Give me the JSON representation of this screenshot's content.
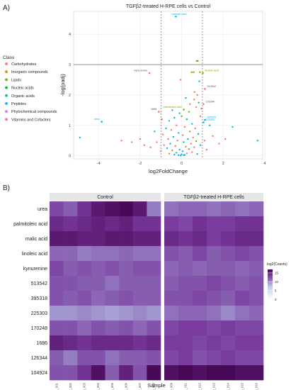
{
  "panel_labels": {
    "a": "A)",
    "b": "B)"
  },
  "legend_class": {
    "title": "Class",
    "items": [
      {
        "label": "Carbohydrates",
        "color": "#f8766d"
      },
      {
        "label": "Inorganic compounds",
        "color": "#d39200"
      },
      {
        "label": "Lipids",
        "color": "#7cae00"
      },
      {
        "label": "Nucleic acids",
        "color": "#00ba38"
      },
      {
        "label": "Organic acids",
        "color": "#00c19f"
      },
      {
        "label": "Peptides",
        "color": "#00b9e3"
      },
      {
        "label": "Phytochemical compounds",
        "color": "#c77cff"
      },
      {
        "label": "Vitamins and Cofactors",
        "color": "#ff61c3"
      }
    ]
  },
  "chart_data": [
    {
      "type": "scatter",
      "title": "TGFβ2-treated H-RPE cells vs Control",
      "xlabel": "log2FoldChange",
      "ylabel": "-log(padj)",
      "xlim": [
        -5.2,
        3.9
      ],
      "ylim": [
        -0.1,
        4.75
      ],
      "xticks": [
        -4,
        -2,
        0,
        2,
        4
      ],
      "yticks": [
        0,
        1,
        2,
        3,
        4
      ],
      "vlines": [
        -1,
        1
      ],
      "hline": 3,
      "grid": true,
      "legend": "left",
      "labeled_points": [
        {
          "label": "malonic acid",
          "x": -0.28,
          "y": 4.58,
          "class": "Peptides"
        },
        {
          "label": "kynurenine",
          "x": -1.55,
          "y": 2.72,
          "class": "Carbohydrates"
        },
        {
          "label": "linoleic acid",
          "x": 1.02,
          "y": 2.72,
          "class": "Lipids"
        },
        {
          "label": "513542",
          "x": 1.12,
          "y": 2.2,
          "class": "Carbohydrates"
        },
        {
          "label": "126344",
          "x": 1.05,
          "y": 1.7,
          "class": "Carbohydrates"
        },
        {
          "label": "palmitoleic acid",
          "x": 0.1,
          "y": 1.52,
          "class": "Lipids"
        },
        {
          "label": "1686",
          "x": -1.1,
          "y": 1.45,
          "class": "Carbohydrates"
        },
        {
          "label": "395318",
          "x": 1.12,
          "y": 1.18,
          "class": "Peptides"
        },
        {
          "label": "225303",
          "x": 1.05,
          "y": 1.1,
          "class": "Peptides"
        },
        {
          "label": "urea",
          "x": -3.85,
          "y": 1.12,
          "class": "Peptides"
        }
      ],
      "points": [
        {
          "x": 0.72,
          "y": 3.12,
          "class": "Lipids"
        },
        {
          "x": 0.78,
          "y": 3.12,
          "class": "Lipids"
        },
        {
          "x": 0.48,
          "y": 2.75,
          "class": "Lipids"
        },
        {
          "x": 0.58,
          "y": 2.75,
          "class": "Lipids"
        },
        {
          "x": 0.88,
          "y": 2.75,
          "class": "Lipids"
        },
        {
          "x": -0.05,
          "y": 2.5,
          "class": "Carbohydrates"
        },
        {
          "x": 0.85,
          "y": 2.45,
          "class": "Peptides"
        },
        {
          "x": 0.62,
          "y": 2.1,
          "class": "Carbohydrates"
        },
        {
          "x": 0.75,
          "y": 2.0,
          "class": "Carbohydrates"
        },
        {
          "x": 0.6,
          "y": 1.85,
          "class": "Carbohydrates"
        },
        {
          "x": 0.82,
          "y": 1.75,
          "class": "Organic acids"
        },
        {
          "x": 0.7,
          "y": 1.6,
          "class": "Carbohydrates"
        },
        {
          "x": 0.35,
          "y": 1.45,
          "class": "Lipids"
        },
        {
          "x": -0.1,
          "y": 1.4,
          "class": "Peptides"
        },
        {
          "x": 0.0,
          "y": 1.3,
          "class": "Lipids"
        },
        {
          "x": 0.9,
          "y": 1.3,
          "class": "Carbohydrates"
        },
        {
          "x": -0.35,
          "y": 1.25,
          "class": "Peptides"
        },
        {
          "x": 0.25,
          "y": 1.2,
          "class": "Organic acids"
        },
        {
          "x": -0.6,
          "y": 1.15,
          "class": "Peptides"
        },
        {
          "x": 0.5,
          "y": 1.05,
          "class": "Peptides"
        },
        {
          "x": -0.25,
          "y": 1.0,
          "class": "Carbohydrates"
        },
        {
          "x": 0.15,
          "y": 0.95,
          "class": "Carbohydrates"
        },
        {
          "x": -0.75,
          "y": 0.9,
          "class": "Peptides"
        },
        {
          "x": 0.65,
          "y": 0.9,
          "class": "Carbohydrates"
        },
        {
          "x": -0.5,
          "y": 0.85,
          "class": "Carbohydrates"
        },
        {
          "x": 0.4,
          "y": 0.8,
          "class": "Lipids"
        },
        {
          "x": -0.15,
          "y": 0.75,
          "class": "Peptides"
        },
        {
          "x": 0.8,
          "y": 0.72,
          "class": "Organic acids"
        },
        {
          "x": -0.9,
          "y": 0.7,
          "class": "Carbohydrates"
        },
        {
          "x": 0.05,
          "y": 0.68,
          "class": "Carbohydrates"
        },
        {
          "x": -0.4,
          "y": 0.62,
          "class": "Peptides"
        },
        {
          "x": 0.55,
          "y": 0.6,
          "class": "Carbohydrates"
        },
        {
          "x": -0.65,
          "y": 0.55,
          "class": "Carbohydrates"
        },
        {
          "x": 0.3,
          "y": 0.55,
          "class": "Peptides"
        },
        {
          "x": -0.2,
          "y": 0.5,
          "class": "Carbohydrates"
        },
        {
          "x": 0.7,
          "y": 0.48,
          "class": "Lipids"
        },
        {
          "x": -1.2,
          "y": 0.45,
          "class": "Carbohydrates"
        },
        {
          "x": 0.1,
          "y": 0.45,
          "class": "Organic acids"
        },
        {
          "x": -0.55,
          "y": 0.4,
          "class": "Peptides"
        },
        {
          "x": 0.45,
          "y": 0.4,
          "class": "Carbohydrates"
        },
        {
          "x": -0.85,
          "y": 0.35,
          "class": "Carbohydrates"
        },
        {
          "x": 0.9,
          "y": 0.35,
          "class": "Peptides"
        },
        {
          "x": -0.3,
          "y": 0.32,
          "class": "Carbohydrates"
        },
        {
          "x": 0.2,
          "y": 0.3,
          "class": "Carbohydrates"
        },
        {
          "x": -1.5,
          "y": 0.28,
          "class": "Carbohydrates"
        },
        {
          "x": 0.6,
          "y": 0.28,
          "class": "Carbohydrates"
        },
        {
          "x": -0.7,
          "y": 0.25,
          "class": "Peptides"
        },
        {
          "x": 0.35,
          "y": 0.22,
          "class": "Lipids"
        },
        {
          "x": -0.1,
          "y": 0.2,
          "class": "Peptides"
        },
        {
          "x": 1.2,
          "y": 0.2,
          "class": "Carbohydrates"
        },
        {
          "x": -0.45,
          "y": 0.18,
          "class": "Carbohydrates"
        },
        {
          "x": 0.05,
          "y": 0.15,
          "class": "Peptides"
        },
        {
          "x": -1.0,
          "y": 0.15,
          "class": "Carbohydrates"
        },
        {
          "x": 0.5,
          "y": 0.12,
          "class": "Carbohydrates"
        },
        {
          "x": -0.25,
          "y": 0.1,
          "class": "Peptides"
        },
        {
          "x": 0.25,
          "y": 0.08,
          "class": "Carbohydrates"
        },
        {
          "x": -0.6,
          "y": 0.07,
          "class": "Carbohydrates"
        },
        {
          "x": 0.75,
          "y": 0.06,
          "class": "Peptides"
        },
        {
          "x": 0.0,
          "y": 0.05,
          "class": "Peptides"
        },
        {
          "x": -0.35,
          "y": 0.04,
          "class": "Peptides"
        },
        {
          "x": 0.15,
          "y": 0.03,
          "class": "Peptides"
        },
        {
          "x": -0.15,
          "y": 0.02,
          "class": "Peptides"
        },
        {
          "x": 0.1,
          "y": 0.02,
          "class": "Peptides"
        },
        {
          "x": -0.05,
          "y": 0.01,
          "class": "Peptides"
        },
        {
          "x": -2.0,
          "y": 0.55,
          "class": "Carbohydrates"
        },
        {
          "x": -1.8,
          "y": 0.35,
          "class": "Carbohydrates"
        },
        {
          "x": -2.4,
          "y": 0.45,
          "class": "Carbohydrates"
        },
        {
          "x": -2.9,
          "y": 0.5,
          "class": "Carbohydrates"
        },
        {
          "x": 1.5,
          "y": 0.65,
          "class": "Carbohydrates"
        },
        {
          "x": 1.8,
          "y": 0.4,
          "class": "Carbohydrates"
        },
        {
          "x": 2.1,
          "y": 0.55,
          "class": "Carbohydrates"
        },
        {
          "x": 1.35,
          "y": 1.0,
          "class": "Peptides"
        },
        {
          "x": 2.45,
          "y": 0.95,
          "class": "Peptides"
        },
        {
          "x": 3.65,
          "y": 0.5,
          "class": "Peptides"
        },
        {
          "x": -4.9,
          "y": 0.6,
          "class": "Peptides"
        },
        {
          "x": 1.1,
          "y": 0.5,
          "class": "Carbohydrates"
        },
        {
          "x": -1.3,
          "y": 0.8,
          "class": "Peptides"
        },
        {
          "x": -0.95,
          "y": 1.2,
          "class": "Carbohydrates"
        },
        {
          "x": 0.95,
          "y": 1.55,
          "class": "Carbohydrates"
        },
        {
          "x": 0.4,
          "y": 1.7,
          "class": "Carbohydrates"
        },
        {
          "x": 0.2,
          "y": 1.9,
          "class": "Organic acids"
        },
        {
          "x": -0.45,
          "y": 1.5,
          "class": "Peptides"
        }
      ]
    },
    {
      "type": "heatmap",
      "xlabel": "Sample",
      "facets": [
        "Control",
        "TGFβ2-treated H-RPE cells"
      ],
      "rows": [
        "urea",
        "palmitoleic acid",
        "malic acid",
        "linoleic acid",
        "kynurenine",
        "513542",
        "395318",
        "225303",
        "170248",
        "1686",
        "126344",
        "104924"
      ],
      "columns": [
        [
          "X1_001",
          "X2_002",
          "X3_003",
          "X4_004",
          "X5_005",
          "X6_006",
          "X7_007",
          "X8_008"
        ],
        [
          "X9_009",
          "X11_011",
          "X12_012",
          "X13_013",
          "X14_014",
          "X15_015",
          "X16_016"
        ]
      ],
      "values": [
        [
          [
            13.0,
            12.0,
            14.0,
            15.5,
            16.0,
            16.5,
            15.5,
            10.5
          ],
          [
            14.5,
            14.0,
            14.5,
            15.0,
            14.5,
            15.0,
            14.0,
            14.0
          ],
          [
            15.5,
            15.5,
            15.0,
            15.0,
            15.5,
            15.5,
            15.0,
            15.0
          ],
          [
            11.5,
            11.5,
            10.5,
            11.0,
            11.0,
            11.5,
            11.0,
            11.0
          ],
          [
            13.0,
            12.0,
            12.5,
            12.0,
            12.5,
            12.0,
            12.5,
            12.5
          ],
          [
            12.5,
            12.5,
            12.0,
            12.0,
            11.0,
            12.0,
            12.0,
            12.0
          ],
          [
            12.5,
            12.0,
            12.5,
            11.5,
            12.0,
            12.5,
            12.0,
            12.0
          ],
          [
            9.5,
            9.5,
            10.0,
            9.5,
            9.0,
            9.5,
            10.0,
            9.5
          ],
          [
            12.5,
            12.5,
            11.5,
            12.5,
            12.0,
            12.5,
            11.5,
            12.5
          ],
          [
            15.0,
            14.5,
            14.0,
            14.5,
            14.5,
            14.5,
            14.0,
            14.5
          ],
          [
            12.0,
            10.5,
            12.5,
            12.5,
            11.0,
            12.0,
            12.0,
            12.5
          ],
          [
            12.5,
            12.5,
            14.0,
            16.0,
            12.0,
            15.0,
            12.5,
            16.5
          ]
        ],
        [
          [
            11.0,
            11.5,
            11.5,
            11.0,
            11.5,
            11.0,
            11.5
          ],
          [
            13.5,
            13.0,
            14.0,
            13.5,
            13.5,
            14.0,
            14.0
          ],
          [
            14.5,
            14.0,
            14.5,
            13.5,
            14.0,
            14.5,
            14.5
          ],
          [
            12.5,
            12.0,
            13.0,
            12.0,
            12.5,
            13.0,
            12.5
          ],
          [
            11.5,
            12.0,
            11.5,
            12.0,
            12.0,
            11.5,
            12.0
          ],
          [
            12.0,
            12.5,
            12.5,
            13.0,
            12.5,
            12.0,
            12.5
          ],
          [
            12.5,
            12.5,
            13.0,
            12.5,
            12.0,
            13.0,
            12.5
          ],
          [
            11.0,
            11.5,
            11.5,
            11.0,
            10.0,
            11.0,
            11.5
          ],
          [
            13.0,
            13.5,
            13.5,
            13.0,
            13.5,
            13.0,
            13.0
          ],
          [
            13.5,
            13.5,
            13.0,
            13.5,
            13.0,
            13.5,
            13.5
          ],
          [
            13.0,
            13.5,
            12.5,
            13.0,
            13.5,
            13.0,
            13.0
          ],
          [
            16.0,
            16.5,
            16.0,
            16.5,
            16.5,
            16.0,
            16.0
          ]
        ]
      ],
      "legend": {
        "title": "log2(Counts)",
        "ticks": [
          0,
          5,
          10,
          15
        ],
        "range": [
          0,
          17
        ]
      }
    }
  ]
}
